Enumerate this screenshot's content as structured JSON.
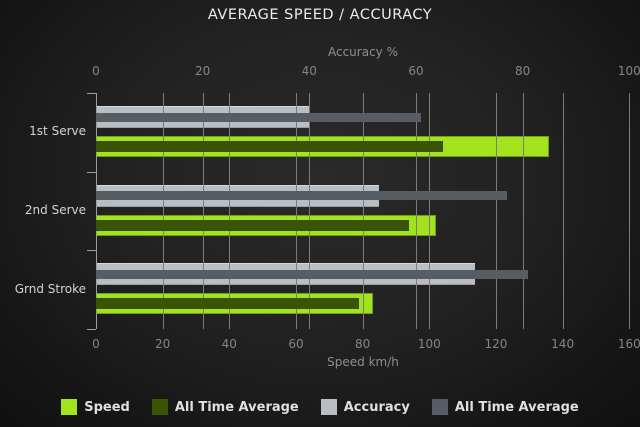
{
  "title": "AVERAGE SPEED / ACCURACY",
  "chart_data": {
    "type": "bar",
    "orientation": "horizontal",
    "title": "AVERAGE SPEED / ACCURACY",
    "categories": [
      "1st Serve",
      "2nd Serve",
      "Grnd Stroke"
    ],
    "series": [
      {
        "name": "Speed",
        "axis": "bottom",
        "color": "#a3e31e",
        "values": [
          136,
          102,
          83
        ]
      },
      {
        "name": "All Time Average",
        "axis": "bottom",
        "color": "#3a5307",
        "values": [
          104,
          94,
          79
        ]
      },
      {
        "name": "Accuracy",
        "axis": "top",
        "color": "#b9bec4",
        "values": [
          40,
          53,
          71
        ]
      },
      {
        "name": "All Time Average",
        "axis": "top",
        "color": "#565d65",
        "values": [
          61,
          77,
          81
        ]
      }
    ],
    "axes": {
      "top": {
        "label": "Accuracy %",
        "min": 0,
        "max": 100,
        "ticks": [
          0,
          20,
          40,
          60,
          80,
          100
        ]
      },
      "bottom": {
        "label": "Speed km/h",
        "min": 0,
        "max": 160,
        "ticks": [
          0,
          20,
          40,
          60,
          80,
          100,
          120,
          140,
          160
        ]
      }
    },
    "grid": true,
    "legend_position": "bottom",
    "legend": [
      "Speed",
      "All Time Average",
      "Accuracy",
      "All Time Average"
    ],
    "background_color": "#1e1e1e",
    "gridline_color": "#7c7c7c"
  }
}
